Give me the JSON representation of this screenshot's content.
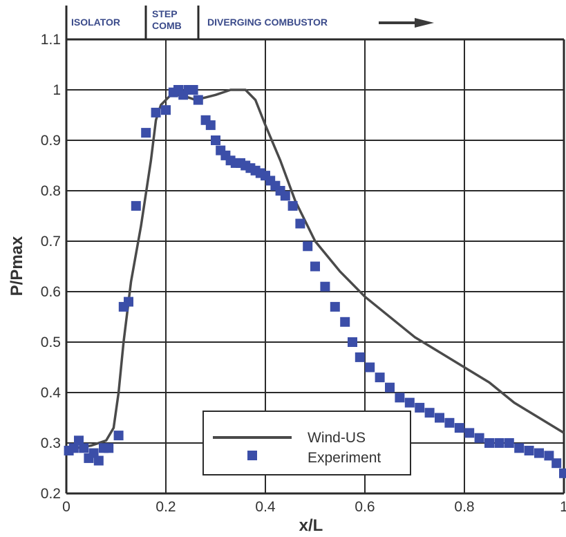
{
  "colors": {
    "line": "#4a4a4a",
    "marker": "#3b4ea8",
    "grid": "#2a2a2a",
    "band_text": "#3a4a8a"
  },
  "bands": [
    "ISOLATOR",
    "STEP",
    "COMB",
    "DIVERGING COMBUSTOR"
  ],
  "chart_data": {
    "type": "scatter",
    "xlabel": "x/L",
    "ylabel": "P/Pmax",
    "xlim": [
      0,
      1
    ],
    "ylim": [
      0.2,
      1.1
    ],
    "xticks": [
      "0",
      "0.2",
      "0.4",
      "0.6",
      "0.8",
      "1"
    ],
    "yticks": [
      "0.2",
      "0.3",
      "0.4",
      "0.5",
      "0.6",
      "0.7",
      "0.8",
      "0.9",
      "1",
      "1.1"
    ],
    "grid": true,
    "legend_position": "bottom-center",
    "series": [
      {
        "name": "Wind-US",
        "kind": "line",
        "x": [
          0,
          0.02,
          0.05,
          0.08,
          0.095,
          0.105,
          0.115,
          0.13,
          0.15,
          0.17,
          0.18,
          0.19,
          0.21,
          0.23,
          0.26,
          0.3,
          0.33,
          0.36,
          0.38,
          0.4,
          0.43,
          0.46,
          0.5,
          0.55,
          0.6,
          0.7,
          0.8,
          0.85,
          0.9,
          0.95,
          1.0
        ],
        "y": [
          0.29,
          0.29,
          0.295,
          0.305,
          0.33,
          0.4,
          0.5,
          0.62,
          0.73,
          0.86,
          0.94,
          0.97,
          0.99,
          0.99,
          0.98,
          0.99,
          1.0,
          1.0,
          0.98,
          0.93,
          0.86,
          0.78,
          0.7,
          0.64,
          0.59,
          0.51,
          0.45,
          0.42,
          0.38,
          0.35,
          0.32
        ]
      },
      {
        "name": "Experiment",
        "kind": "marker",
        "x": [
          0.005,
          0.015,
          0.025,
          0.035,
          0.045,
          0.055,
          0.065,
          0.075,
          0.085,
          0.105,
          0.115,
          0.125,
          0.14,
          0.16,
          0.18,
          0.2,
          0.215,
          0.225,
          0.235,
          0.245,
          0.255,
          0.265,
          0.28,
          0.29,
          0.3,
          0.31,
          0.32,
          0.33,
          0.34,
          0.35,
          0.36,
          0.37,
          0.38,
          0.39,
          0.4,
          0.41,
          0.42,
          0.43,
          0.44,
          0.455,
          0.47,
          0.485,
          0.5,
          0.52,
          0.54,
          0.56,
          0.575,
          0.59,
          0.61,
          0.63,
          0.65,
          0.67,
          0.69,
          0.71,
          0.73,
          0.75,
          0.77,
          0.79,
          0.81,
          0.83,
          0.85,
          0.87,
          0.89,
          0.91,
          0.93,
          0.95,
          0.97,
          0.985,
          1.0
        ],
        "y": [
          0.285,
          0.29,
          0.305,
          0.29,
          0.27,
          0.28,
          0.265,
          0.29,
          0.29,
          0.315,
          0.57,
          0.58,
          0.77,
          0.915,
          0.955,
          0.96,
          0.995,
          1.0,
          0.99,
          1.0,
          1.0,
          0.98,
          0.94,
          0.93,
          0.9,
          0.88,
          0.87,
          0.86,
          0.855,
          0.855,
          0.85,
          0.845,
          0.84,
          0.835,
          0.83,
          0.82,
          0.81,
          0.8,
          0.79,
          0.77,
          0.735,
          0.69,
          0.65,
          0.61,
          0.57,
          0.54,
          0.5,
          0.47,
          0.45,
          0.43,
          0.41,
          0.39,
          0.38,
          0.37,
          0.36,
          0.35,
          0.34,
          0.33,
          0.32,
          0.31,
          0.3,
          0.3,
          0.3,
          0.29,
          0.285,
          0.28,
          0.275,
          0.26,
          0.24
        ]
      }
    ]
  }
}
